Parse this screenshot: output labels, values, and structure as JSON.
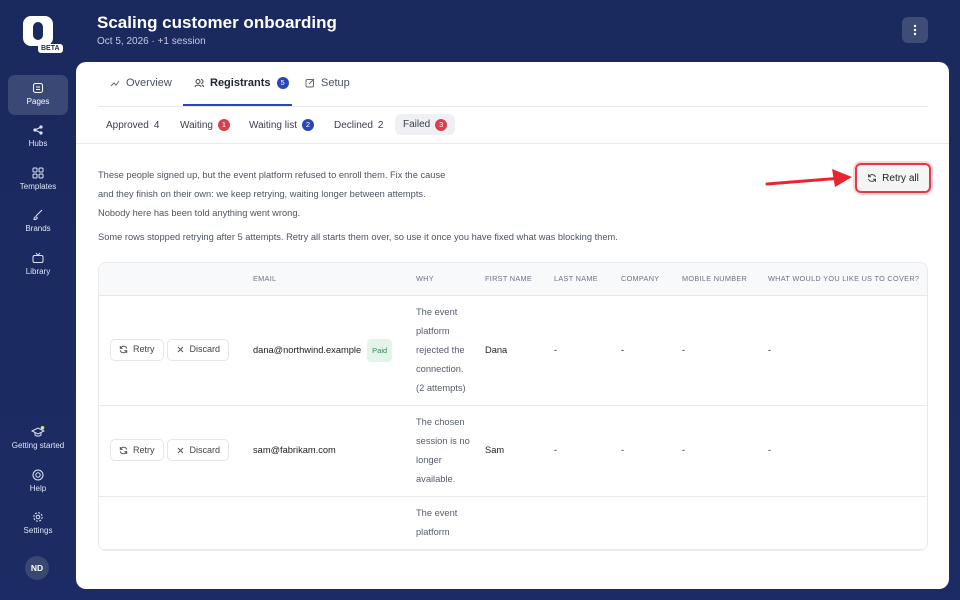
{
  "sidebar": {
    "logo_badge": "BETA",
    "nav": [
      "Pages",
      "Hubs",
      "Templates",
      "Brands",
      "Library"
    ],
    "footer": [
      "Getting started",
      "Help",
      "Settings"
    ],
    "avatar": "ND"
  },
  "header": {
    "title": "Scaling customer onboarding",
    "subtitle": "Oct 5, 2026 · +1 session"
  },
  "tabs": [
    {
      "label": "Overview"
    },
    {
      "label": "Registrants",
      "count": 5
    },
    {
      "label": "Setup"
    }
  ],
  "filters": [
    {
      "label": "Approved",
      "count": 4
    },
    {
      "label": "Waiting",
      "count": 1
    },
    {
      "label": "Waiting list",
      "count": 2
    },
    {
      "label": "Declined",
      "count": 2
    },
    {
      "label": "Failed",
      "count": 3
    }
  ],
  "description": "These people signed up, but the event platform refused to enroll them. Fix the cause and they finish on their own: we keep retrying, waiting longer between attempts. Nobody here has been told anything went wrong.",
  "note": "Some rows stopped retrying after 5 attempts. Retry all starts them over, so use it once you have fixed what was blocking them.",
  "retry_all": "Retry all",
  "table": {
    "columns": [
      "EMAIL",
      "WHY",
      "FIRST NAME",
      "LAST NAME",
      "COMPANY",
      "MOBILE NUMBER",
      "WHAT WOULD YOU LIKE US TO COVER?"
    ],
    "row_actions": [
      "Retry",
      "Discard"
    ],
    "rows": [
      {
        "email": "dana@northwind.example",
        "tag": "Paid",
        "why": "The event platform rejected the connection. (2 attempts)",
        "first_name": "Dana",
        "last_name": "-",
        "company": "-",
        "mobile": "-",
        "cover": "-"
      },
      {
        "email": "sam@fabrikam.com",
        "why": "The chosen session is no longer available.",
        "first_name": "Sam",
        "last_name": "-",
        "company": "-",
        "mobile": "-",
        "cover": "-"
      },
      {
        "why": "The event platform"
      }
    ]
  }
}
